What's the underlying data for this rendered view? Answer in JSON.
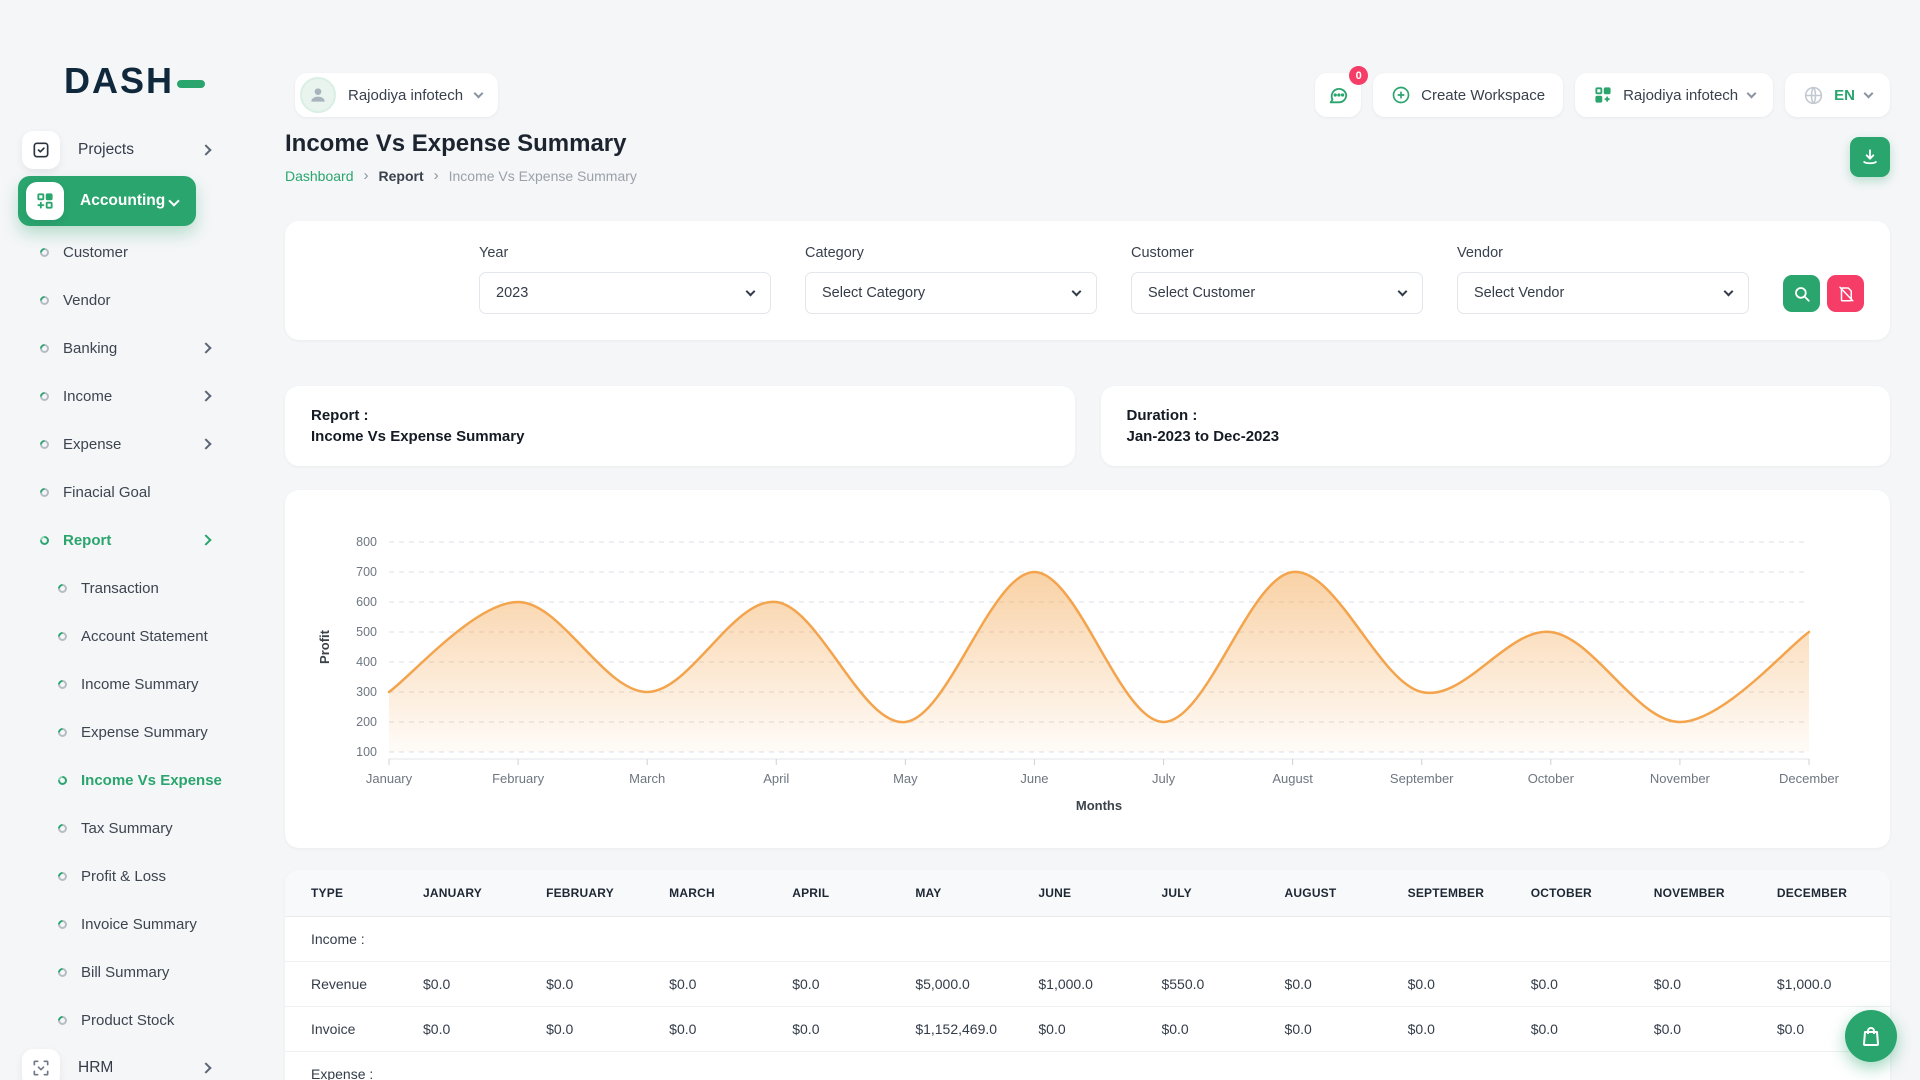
{
  "app": {
    "logo_text": "DASH",
    "accent_green": "#2aa56e",
    "accent_pink": "#f63d68"
  },
  "sidebar": {
    "items": [
      {
        "label": "Projects",
        "type": "top",
        "icon": "checkbox-icon",
        "chevron": "right"
      },
      {
        "label": "Accounting",
        "type": "top",
        "icon": "grid-plus-icon",
        "chevron": "down",
        "active": true
      },
      {
        "label": "Customer",
        "type": "sub1"
      },
      {
        "label": "Vendor",
        "type": "sub1"
      },
      {
        "label": "Banking",
        "type": "sub1",
        "chevron": "right"
      },
      {
        "label": "Income",
        "type": "sub1",
        "chevron": "right"
      },
      {
        "label": "Expense",
        "type": "sub1",
        "chevron": "right"
      },
      {
        "label": "Finacial Goal",
        "type": "sub1"
      },
      {
        "label": "Report",
        "type": "sub1",
        "chevron": "right",
        "active": true
      },
      {
        "label": "Transaction",
        "type": "sub2"
      },
      {
        "label": "Account Statement",
        "type": "sub2"
      },
      {
        "label": "Income Summary",
        "type": "sub2"
      },
      {
        "label": "Expense Summary",
        "type": "sub2"
      },
      {
        "label": "Income Vs Expense",
        "type": "sub2",
        "active": true
      },
      {
        "label": "Tax Summary",
        "type": "sub2"
      },
      {
        "label": "Profit & Loss",
        "type": "sub2"
      },
      {
        "label": "Invoice Summary",
        "type": "sub2"
      },
      {
        "label": "Bill Summary",
        "type": "sub2"
      },
      {
        "label": "Product Stock",
        "type": "sub2"
      },
      {
        "label": "HRM",
        "type": "top",
        "icon": "hrm-icon",
        "chevron": "right"
      }
    ]
  },
  "header": {
    "workspace_name": "Rajodiya infotech",
    "messages_badge": "0",
    "create_workspace_label": "Create Workspace",
    "company_name": "Rajodiya infotech",
    "language": "EN"
  },
  "page": {
    "title": "Income Vs Expense Summary",
    "breadcrumb": [
      "Dashboard",
      "Report",
      "Income Vs Expense Summary"
    ]
  },
  "filters": {
    "fields": [
      {
        "label": "Year",
        "value": "2023"
      },
      {
        "label": "Category",
        "value": "Select Category"
      },
      {
        "label": "Customer",
        "value": "Select Customer"
      },
      {
        "label": "Vendor",
        "value": "Select Vendor"
      }
    ]
  },
  "summary_cards": [
    {
      "title": "Report :",
      "value": "Income Vs Expense Summary"
    },
    {
      "title": "Duration :",
      "value": "Jan-2023 to Dec-2023"
    }
  ],
  "chart_data": {
    "type": "area",
    "x": [
      "January",
      "February",
      "March",
      "April",
      "May",
      "June",
      "July",
      "August",
      "September",
      "October",
      "November",
      "December"
    ],
    "series": [
      {
        "name": "Profit",
        "values": [
          300,
          600,
          300,
          600,
          200,
          700,
          200,
          700,
          300,
          500,
          200,
          500
        ]
      }
    ],
    "xlabel": "Months",
    "ylabel": "Profit",
    "ylim": [
      100,
      800
    ],
    "yticks": [
      100,
      200,
      300,
      400,
      500,
      600,
      700,
      800
    ],
    "grid": true,
    "legend": false,
    "line_color": "#f3a44c"
  },
  "table": {
    "headers": [
      "TYPE",
      "JANUARY",
      "FEBRUARY",
      "MARCH",
      "APRIL",
      "MAY",
      "JUNE",
      "JULY",
      "AUGUST",
      "SEPTEMBER",
      "OCTOBER",
      "NOVEMBER",
      "DECEMBER"
    ],
    "rows": [
      {
        "kind": "section",
        "cells": [
          "Income :",
          "",
          "",
          "",
          "",
          "",
          "",
          "",
          "",
          "",
          "",
          "",
          ""
        ]
      },
      {
        "kind": "data",
        "cells": [
          "Revenue",
          "$0.0",
          "$0.0",
          "$0.0",
          "$0.0",
          "$5,000.0",
          "$1,000.0",
          "$550.0",
          "$0.0",
          "$0.0",
          "$0.0",
          "$0.0",
          "$1,000.0"
        ]
      },
      {
        "kind": "data",
        "cells": [
          "Invoice",
          "$0.0",
          "$0.0",
          "$0.0",
          "$0.0",
          "$1,152,469.0",
          "$0.0",
          "$0.0",
          "$0.0",
          "$0.0",
          "$0.0",
          "$0.0",
          "$0.0"
        ]
      },
      {
        "kind": "section",
        "cells": [
          "Expense :",
          "",
          "",
          "",
          "",
          "",
          "",
          "",
          "",
          "",
          "",
          "",
          ""
        ]
      }
    ]
  }
}
